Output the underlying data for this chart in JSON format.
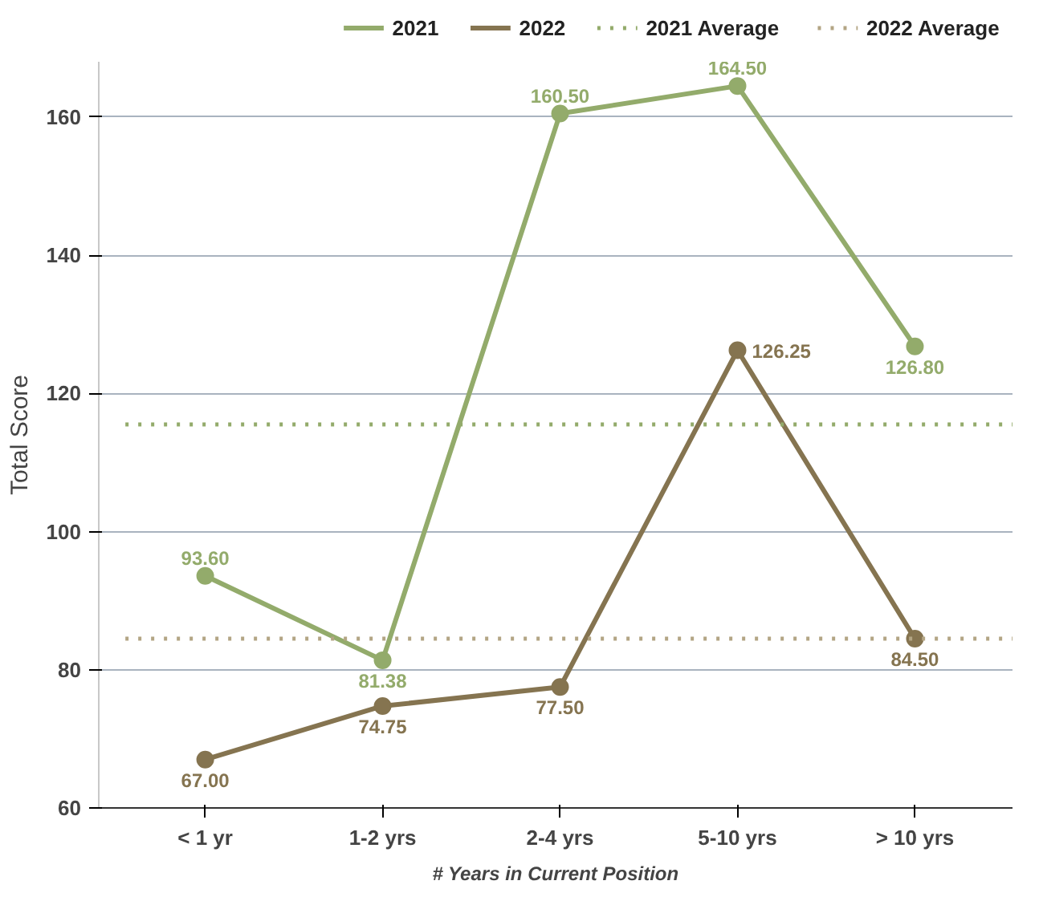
{
  "chart_data": {
    "type": "line",
    "xlabel": "# Years in Current Position",
    "ylabel": "Total Score",
    "categories": [
      "< 1 yr",
      "1-2 yrs",
      "2-4 yrs",
      "5-10 yrs",
      "> 10 yrs"
    ],
    "series": [
      {
        "name": "2021",
        "color": "#93ab6b",
        "values": [
          93.6,
          81.38,
          160.5,
          164.5,
          126.8
        ],
        "value_labels": [
          "93.60",
          "81.38",
          "160.50",
          "164.50",
          "126.80"
        ]
      },
      {
        "name": "2022",
        "color": "#857450",
        "values": [
          67.0,
          74.75,
          77.5,
          126.25,
          84.5
        ],
        "value_labels": [
          "67.00",
          "74.75",
          "77.50",
          "126.25",
          "84.50"
        ]
      }
    ],
    "ref_lines": [
      {
        "axis": "y",
        "value": 115.5,
        "label": "2021 Average",
        "color": "#93ab6b",
        "line_style": "dotted"
      },
      {
        "axis": "y",
        "value": 84.5,
        "label": "2022 Average",
        "color": "#b3a584",
        "line_style": "dotted"
      }
    ],
    "ylim": [
      60,
      168
    ],
    "yticks": [
      60,
      80,
      100,
      120,
      140,
      160
    ],
    "grid": "y",
    "legend": "top",
    "marker": "circle",
    "line_style": "solid",
    "data_labels": true
  }
}
